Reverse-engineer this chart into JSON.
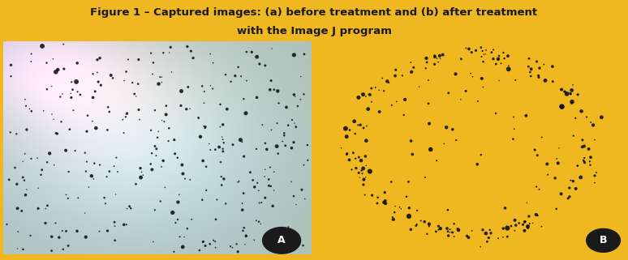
{
  "title_line1": "Figure 1 – Captured images: (a) before treatment and (b) after treatment",
  "title_line2": "with the Image J program",
  "title_color": "#1a1a1a",
  "title_bg_color": "#F0B820",
  "label_a": "A",
  "label_b": "B",
  "title_fontsize": 9.5,
  "panel_border_color": "#cccccc",
  "dot_color": "#111111",
  "label_circle_color": "#1a1a1a"
}
